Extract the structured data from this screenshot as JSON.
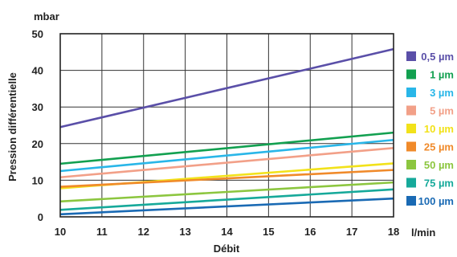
{
  "chart_data": {
    "type": "line",
    "ylabel": "Pression différentielle",
    "yunit": "mbar",
    "xlabel": "Débit",
    "xunit": "l/min",
    "xlim": [
      10,
      18
    ],
    "ylim": [
      0,
      50
    ],
    "x_ticks": [
      "10",
      "11",
      "12",
      "13",
      "14",
      "15",
      "16",
      "17",
      "18"
    ],
    "y_ticks": [
      "0",
      "10",
      "20",
      "30",
      "40",
      "50"
    ],
    "grid": true,
    "legend_position": "right",
    "x": [
      10,
      18
    ],
    "series": [
      {
        "name": "0,5 µm",
        "color": "#5a4fa8",
        "values": [
          24.5,
          45.8
        ]
      },
      {
        "name": "1 µm",
        "color": "#12a050",
        "values": [
          14.5,
          23.0
        ]
      },
      {
        "name": "3 µm",
        "color": "#29b6e8",
        "values": [
          12.5,
          21.0
        ]
      },
      {
        "name": "5 µm",
        "color": "#f2a088",
        "values": [
          10.8,
          18.8
        ]
      },
      {
        "name": "10 µm",
        "color": "#f2e21a",
        "values": [
          7.8,
          14.6
        ]
      },
      {
        "name": "25 µm",
        "color": "#f08a2a",
        "values": [
          8.2,
          12.8
        ]
      },
      {
        "name": "50 µm",
        "color": "#8cc63f",
        "values": [
          4.2,
          9.4
        ]
      },
      {
        "name": "75 µm",
        "color": "#16a99a",
        "values": [
          1.9,
          7.5
        ]
      },
      {
        "name": "100 µm",
        "color": "#1a6ab4",
        "values": [
          0.7,
          5.0
        ]
      }
    ]
  }
}
